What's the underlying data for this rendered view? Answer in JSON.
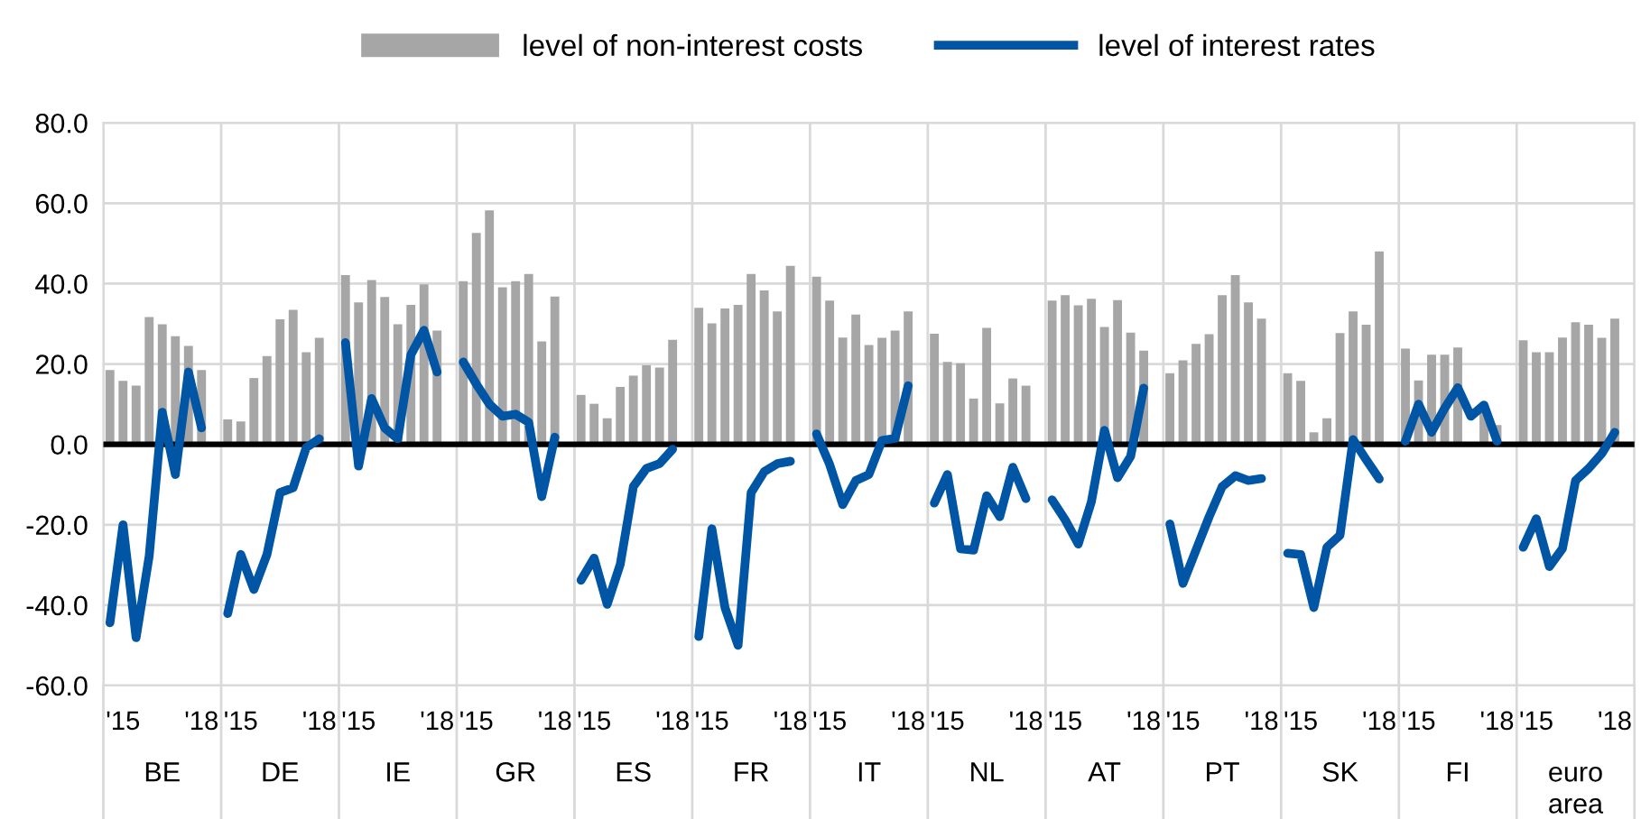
{
  "chart_data": {
    "type": "bar",
    "categories": [
      null,
      "'15",
      null,
      null,
      null,
      null,
      null,
      "'18",
      null,
      null,
      "'15",
      null,
      null,
      null,
      null,
      null,
      "'18",
      null,
      null,
      "'15",
      null,
      null,
      null,
      null,
      null,
      "'18",
      null,
      null,
      "'15",
      null,
      null,
      null,
      null,
      null,
      "'18",
      null,
      null,
      "'15",
      null,
      null,
      null,
      null,
      null,
      "'18",
      null,
      null,
      "'15",
      null,
      null,
      null,
      null,
      null,
      "'18",
      null,
      null,
      "'15",
      null,
      null,
      null,
      null,
      null,
      "'18",
      null,
      null,
      "'15",
      null,
      null,
      null,
      null,
      null,
      "'18",
      null,
      null,
      "'15",
      null,
      null,
      null,
      null,
      null,
      "'18",
      null,
      null,
      "'15",
      null,
      null,
      null,
      null,
      null,
      "'18",
      null,
      null,
      "'15",
      null,
      null,
      null,
      null,
      null,
      "'18",
      null,
      null,
      "'15",
      null,
      null,
      null,
      null,
      null,
      "'18",
      null,
      null,
      "'15",
      null,
      null,
      null,
      null,
      null,
      "'18",
      null
    ],
    "series": [
      {
        "name": "level of non-interest costs",
        "color": "#a6a6a6",
        "values": [
          18.5,
          15.8,
          14.6,
          31.7,
          29.9,
          26.9,
          24.5,
          18.5,
          null,
          6.2,
          5.7,
          16.5,
          22,
          31.1,
          33.5,
          22.9,
          26.5,
          null,
          42.1,
          35.3,
          40.9,
          36.7,
          29.9,
          34.7,
          39.8,
          28.3,
          null,
          40.6,
          52.6,
          58.2,
          39.1,
          40.6,
          42.4,
          25.6,
          36.8,
          null,
          12.3,
          10.1,
          6.5,
          14.3,
          17.1,
          19.7,
          19.1,
          26,
          null,
          34,
          30.1,
          33.8,
          34.7,
          42.4,
          38.3,
          33.1,
          44.4,
          null,
          41.7,
          35.8,
          26.6,
          32.3,
          24.7,
          26.5,
          28.3,
          33.1,
          null,
          27.5,
          20.5,
          20.2,
          11.4,
          29,
          10.2,
          16.4,
          14.6,
          null,
          35.8,
          37.1,
          34.6,
          36.2,
          29.2,
          35.9,
          27.8,
          23.3,
          null,
          17.7,
          20.9,
          25,
          27.4,
          37.1,
          42.1,
          35.3,
          31.3,
          null,
          17.7,
          15.8,
          3,
          6.5,
          27.7,
          33.1,
          29.8,
          48,
          null,
          23.8,
          15.9,
          22.3,
          22.3,
          24.1,
          null,
          9,
          4.8,
          null,
          25.9,
          22.9,
          22.9,
          26.6,
          30.4,
          29.8,
          26.5,
          31.3,
          null
        ]
      },
      {
        "name": "level of interest rates",
        "type": "line",
        "color": "#0055a4",
        "values": [
          -44.4,
          -20,
          -48.1,
          -27.8,
          8,
          -7.5,
          18,
          4.1,
          null,
          -42.1,
          -27.4,
          -36.1,
          -27.4,
          -12,
          -10.8,
          -0.8,
          1.4,
          null,
          25.3,
          -5.4,
          11.4,
          4.1,
          1.4,
          22.3,
          28.4,
          18,
          null,
          20.5,
          15,
          10,
          7,
          7.5,
          5.5,
          -13,
          1.8,
          null,
          -33.8,
          -28.3,
          -39.8,
          -29.8,
          -10.5,
          -6,
          -4.8,
          -1.2,
          null,
          -47.8,
          -21,
          -40.6,
          -50,
          -12,
          -6.8,
          -4.8,
          -4.2,
          null,
          2.6,
          -5,
          -15,
          -9,
          -7.5,
          1,
          1.5,
          14.6,
          null,
          -14.6,
          -7.5,
          -26,
          -26.3,
          -12.8,
          -18,
          -5.7,
          -13.5,
          null,
          -13.8,
          -18.8,
          -24.8,
          -14.3,
          3.5,
          -8.3,
          -3,
          14,
          null,
          -19.8,
          -34.6,
          -26.3,
          -18,
          -10.5,
          -7.8,
          -9,
          -8.5,
          null,
          -27.1,
          -27.4,
          -40.6,
          -25.6,
          -22.6,
          1.2,
          -3.8,
          -8.6,
          null,
          0.8,
          10,
          3,
          9,
          14.1,
          7,
          9.8,
          0.8,
          null,
          -25.6,
          -18.5,
          -30.4,
          -25.9,
          -9,
          -6,
          -2.3,
          3,
          null
        ]
      }
    ],
    "annotations": [
      "BE",
      "DE",
      "IE",
      "GR",
      "ES",
      "FR",
      "IT",
      "NL",
      "AT",
      "PT",
      "SK",
      "FI",
      "euro\narea"
    ],
    "ylim": [
      -60,
      80
    ],
    "yticks": [
      {
        "value": -60,
        "label": "-60.0"
      },
      {
        "value": -40,
        "label": "-40.0"
      },
      {
        "value": -20,
        "label": "-20.0"
      },
      {
        "value": 0,
        "label": "0.0"
      },
      {
        "value": 20,
        "label": "20.0"
      },
      {
        "value": 40,
        "label": "40.0"
      },
      {
        "value": 60,
        "label": "60.0"
      },
      {
        "value": 80,
        "label": "80.0"
      }
    ],
    "ref_lines": [
      {
        "axis": "y",
        "value": 0,
        "color": "#000000"
      }
    ],
    "grid": true,
    "legend": "top",
    "marker": "none",
    "line_style": "solid"
  }
}
